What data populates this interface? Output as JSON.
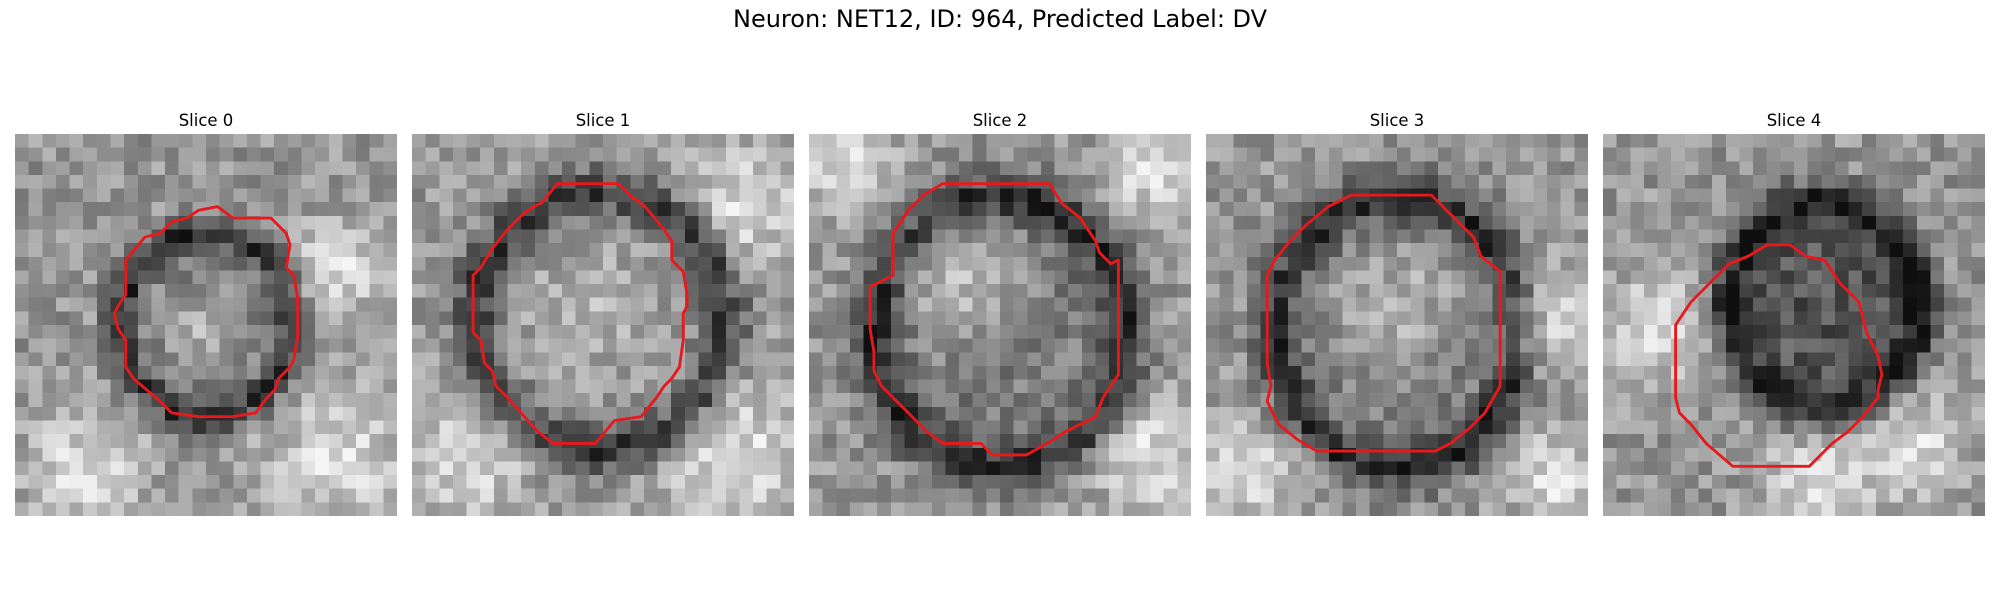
{
  "figure": {
    "title": "Neuron: NET12, ID: 964, Predicted Label: DV"
  },
  "colors": {
    "contour": "#e8191c",
    "background": "#ffffff"
  },
  "panels": [
    {
      "title": "Slice 0",
      "dark_blob": [
        0.5,
        0.5,
        0.24,
        0.26
      ],
      "bright_core": [
        0.47,
        0.5,
        0.1
      ],
      "bright_patches": [
        [
          0.85,
          0.85,
          0.18
        ],
        [
          0.18,
          0.88,
          0.15
        ],
        [
          0.85,
          0.35,
          0.12
        ]
      ]
    },
    {
      "title": "Slice 1",
      "dark_blob": [
        0.49,
        0.49,
        0.35,
        0.36
      ],
      "bright_core": [
        0.47,
        0.46,
        0.26
      ],
      "bright_patches": [
        [
          0.85,
          0.85,
          0.2
        ],
        [
          0.15,
          0.85,
          0.15
        ],
        [
          0.88,
          0.18,
          0.15
        ]
      ]
    },
    {
      "title": "Slice 2",
      "dark_blob": [
        0.5,
        0.52,
        0.35,
        0.38
      ],
      "bright_core": [
        0.4,
        0.38,
        0.16
      ],
      "bright_patches": [
        [
          0.9,
          0.85,
          0.15
        ],
        [
          0.9,
          0.1,
          0.12
        ],
        [
          0.1,
          0.1,
          0.12
        ]
      ]
    },
    {
      "title": "Slice 3",
      "dark_blob": [
        0.5,
        0.52,
        0.34,
        0.38
      ],
      "bright_core": [
        0.5,
        0.45,
        0.18
      ],
      "bright_patches": [
        [
          0.1,
          0.88,
          0.14
        ],
        [
          0.92,
          0.9,
          0.12
        ],
        [
          0.9,
          0.5,
          0.12
        ]
      ]
    },
    {
      "title": "Slice 4",
      "dark_blob": [
        0.58,
        0.45,
        0.28,
        0.3
      ],
      "bright_core": [
        0.58,
        0.45,
        0.0
      ],
      "bright_patches": [
        [
          0.15,
          0.5,
          0.14
        ],
        [
          0.8,
          0.82,
          0.15
        ],
        [
          0.55,
          0.9,
          0.12
        ]
      ]
    }
  ],
  "contours": [
    [
      [
        0.53,
        0.19
      ],
      [
        0.57,
        0.22
      ],
      [
        0.67,
        0.22
      ],
      [
        0.71,
        0.26
      ],
      [
        0.72,
        0.29
      ],
      [
        0.71,
        0.35
      ],
      [
        0.73,
        0.37
      ],
      [
        0.74,
        0.43
      ],
      [
        0.74,
        0.53
      ],
      [
        0.73,
        0.59
      ],
      [
        0.72,
        0.61
      ],
      [
        0.69,
        0.64
      ],
      [
        0.68,
        0.67
      ],
      [
        0.66,
        0.69
      ],
      [
        0.63,
        0.73
      ],
      [
        0.57,
        0.74
      ],
      [
        0.48,
        0.74
      ],
      [
        0.41,
        0.73
      ],
      [
        0.38,
        0.7
      ],
      [
        0.31,
        0.64
      ],
      [
        0.29,
        0.61
      ],
      [
        0.29,
        0.54
      ],
      [
        0.27,
        0.51
      ],
      [
        0.26,
        0.47
      ],
      [
        0.27,
        0.45
      ],
      [
        0.29,
        0.42
      ],
      [
        0.29,
        0.33
      ],
      [
        0.34,
        0.27
      ],
      [
        0.38,
        0.26
      ],
      [
        0.41,
        0.23
      ],
      [
        0.45,
        0.22
      ],
      [
        0.48,
        0.2
      ]
    ],
    [
      [
        0.38,
        0.13
      ],
      [
        0.54,
        0.13
      ],
      [
        0.57,
        0.16
      ],
      [
        0.61,
        0.19
      ],
      [
        0.66,
        0.25
      ],
      [
        0.68,
        0.28
      ],
      [
        0.68,
        0.33
      ],
      [
        0.71,
        0.36
      ],
      [
        0.72,
        0.42
      ],
      [
        0.72,
        0.45
      ],
      [
        0.71,
        0.47
      ],
      [
        0.71,
        0.54
      ],
      [
        0.7,
        0.61
      ],
      [
        0.68,
        0.64
      ],
      [
        0.66,
        0.66
      ],
      [
        0.64,
        0.69
      ],
      [
        0.6,
        0.74
      ],
      [
        0.53,
        0.75
      ],
      [
        0.48,
        0.81
      ],
      [
        0.37,
        0.81
      ],
      [
        0.33,
        0.78
      ],
      [
        0.25,
        0.69
      ],
      [
        0.22,
        0.66
      ],
      [
        0.21,
        0.62
      ],
      [
        0.19,
        0.6
      ],
      [
        0.18,
        0.54
      ],
      [
        0.16,
        0.52
      ],
      [
        0.16,
        0.37
      ],
      [
        0.18,
        0.35
      ],
      [
        0.21,
        0.3
      ],
      [
        0.25,
        0.25
      ],
      [
        0.29,
        0.21
      ],
      [
        0.32,
        0.19
      ],
      [
        0.34,
        0.18
      ]
    ],
    [
      [
        0.35,
        0.13
      ],
      [
        0.63,
        0.13
      ],
      [
        0.66,
        0.18
      ],
      [
        0.71,
        0.22
      ],
      [
        0.75,
        0.28
      ],
      [
        0.76,
        0.31
      ],
      [
        0.79,
        0.34
      ],
      [
        0.81,
        0.33
      ],
      [
        0.81,
        0.63
      ],
      [
        0.79,
        0.66
      ],
      [
        0.77,
        0.69
      ],
      [
        0.75,
        0.74
      ],
      [
        0.71,
        0.76
      ],
      [
        0.67,
        0.78
      ],
      [
        0.64,
        0.8
      ],
      [
        0.57,
        0.84
      ],
      [
        0.48,
        0.84
      ],
      [
        0.45,
        0.81
      ],
      [
        0.35,
        0.81
      ],
      [
        0.31,
        0.78
      ],
      [
        0.24,
        0.71
      ],
      [
        0.19,
        0.66
      ],
      [
        0.17,
        0.62
      ],
      [
        0.17,
        0.57
      ],
      [
        0.16,
        0.51
      ],
      [
        0.16,
        0.4
      ],
      [
        0.2,
        0.38
      ],
      [
        0.22,
        0.37
      ],
      [
        0.22,
        0.26
      ],
      [
        0.26,
        0.2
      ],
      [
        0.3,
        0.16
      ]
    ],
    [
      [
        0.38,
        0.16
      ],
      [
        0.59,
        0.16
      ],
      [
        0.64,
        0.21
      ],
      [
        0.7,
        0.27
      ],
      [
        0.72,
        0.32
      ],
      [
        0.77,
        0.36
      ],
      [
        0.77,
        0.66
      ],
      [
        0.73,
        0.73
      ],
      [
        0.69,
        0.77
      ],
      [
        0.64,
        0.81
      ],
      [
        0.6,
        0.83
      ],
      [
        0.29,
        0.83
      ],
      [
        0.24,
        0.8
      ],
      [
        0.19,
        0.76
      ],
      [
        0.16,
        0.7
      ],
      [
        0.17,
        0.66
      ],
      [
        0.16,
        0.6
      ],
      [
        0.16,
        0.37
      ],
      [
        0.18,
        0.33
      ],
      [
        0.22,
        0.28
      ],
      [
        0.26,
        0.24
      ],
      [
        0.32,
        0.19
      ]
    ],
    [
      [
        0.38,
        0.32
      ],
      [
        0.43,
        0.29
      ],
      [
        0.49,
        0.29
      ],
      [
        0.53,
        0.32
      ],
      [
        0.58,
        0.33
      ],
      [
        0.62,
        0.39
      ],
      [
        0.67,
        0.44
      ],
      [
        0.69,
        0.52
      ],
      [
        0.72,
        0.58
      ],
      [
        0.73,
        0.63
      ],
      [
        0.72,
        0.67
      ],
      [
        0.72,
        0.69
      ],
      [
        0.68,
        0.74
      ],
      [
        0.64,
        0.78
      ],
      [
        0.6,
        0.81
      ],
      [
        0.54,
        0.87
      ],
      [
        0.34,
        0.87
      ],
      [
        0.27,
        0.81
      ],
      [
        0.23,
        0.76
      ],
      [
        0.2,
        0.73
      ],
      [
        0.19,
        0.69
      ],
      [
        0.19,
        0.5
      ],
      [
        0.21,
        0.47
      ],
      [
        0.23,
        0.44
      ],
      [
        0.26,
        0.41
      ],
      [
        0.29,
        0.38
      ],
      [
        0.33,
        0.34
      ]
    ]
  ]
}
